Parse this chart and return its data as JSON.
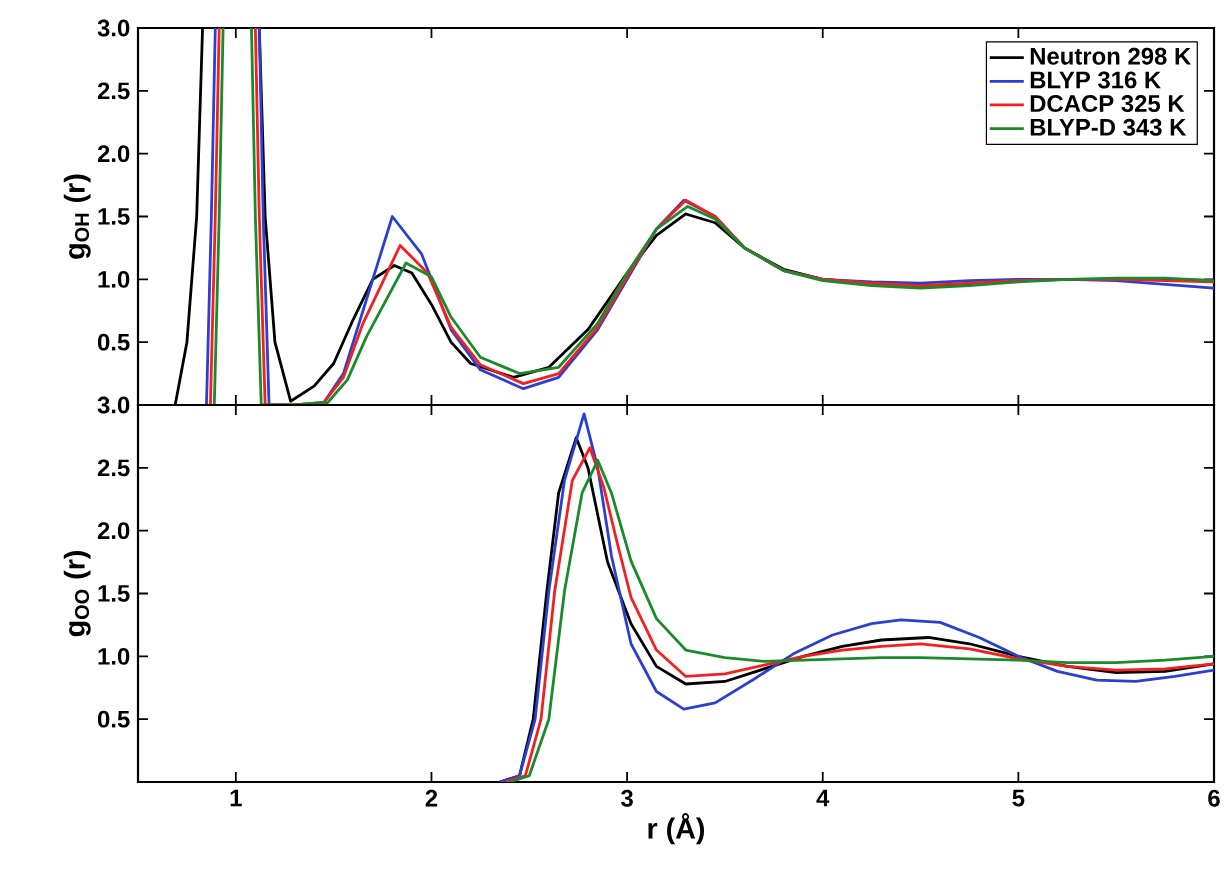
{
  "chart_data": [
    {
      "type": "line",
      "ylabel": "g$_{OH}$ (r)",
      "xlim": [
        0.5,
        6
      ],
      "xticks": [
        1,
        2,
        3,
        4,
        5,
        6
      ],
      "ylim": [
        0,
        3
      ],
      "yticks": [
        {
          "value": 0.5,
          "label": "0.5"
        },
        {
          "value": 1,
          "label": "1.0"
        },
        {
          "value": 1.5,
          "label": "1.5"
        },
        {
          "value": 2,
          "label": "2.0"
        },
        {
          "value": 2.5,
          "label": "2.5"
        },
        {
          "value": 3,
          "label": "3.0"
        }
      ],
      "tick_labels": "y",
      "legend": "top right",
      "marker": "none",
      "line_style": "solid",
      "grid": false,
      "series": [
        {
          "name": "Neutron 298 K",
          "color": "#000000",
          "x": [
            0.69,
            0.75,
            0.8,
            0.83,
            0.95,
            1.12,
            1.15,
            1.2,
            1.28,
            1.4,
            1.5,
            1.6,
            1.7,
            1.81,
            1.9,
            2.0,
            2.1,
            2.2,
            2.42,
            2.6,
            2.8,
            3.0,
            3.15,
            3.3,
            3.45,
            3.6,
            3.8,
            4.0,
            4.25,
            4.5,
            4.75,
            5.0,
            5.25,
            5.5,
            5.75,
            6.0
          ],
          "values": [
            0,
            0.5,
            1.5,
            3.0,
            null,
            3.0,
            1.5,
            0.5,
            0.03,
            0.15,
            0.33,
            0.68,
            1.0,
            1.11,
            1.05,
            0.8,
            0.5,
            0.33,
            0.22,
            0.3,
            0.6,
            1.05,
            1.35,
            1.52,
            1.45,
            1.25,
            1.08,
            1.0,
            0.97,
            0.95,
            0.96,
            0.99,
            1.0,
            1.0,
            1.0,
            0.99
          ]
        },
        {
          "name": "BLYP 316 K",
          "color": "#2b3fd0",
          "x": [
            0.85,
            0.875,
            0.895,
            1.0,
            1.12,
            1.14,
            1.17,
            1.3,
            1.45,
            1.55,
            1.65,
            1.8,
            1.95,
            2.1,
            2.25,
            2.47,
            2.65,
            2.85,
            3.0,
            3.15,
            3.29,
            3.45,
            3.6,
            3.8,
            4.0,
            4.25,
            4.5,
            4.75,
            5.0,
            5.25,
            5.5,
            5.75,
            6.0
          ],
          "values": [
            0,
            1.5,
            3.0,
            null,
            3.0,
            1.5,
            0,
            0,
            0.02,
            0.25,
            0.75,
            1.5,
            1.2,
            0.6,
            0.28,
            0.13,
            0.22,
            0.6,
            1.0,
            1.4,
            1.63,
            1.5,
            1.25,
            1.07,
            1.0,
            0.98,
            0.97,
            0.99,
            1.0,
            1.0,
            0.99,
            0.96,
            0.93
          ]
        },
        {
          "name": "DCACP 325 K",
          "color": "#f42020",
          "x": [
            0.87,
            0.895,
            0.915,
            1.0,
            1.1,
            1.12,
            1.15,
            1.3,
            1.45,
            1.55,
            1.65,
            1.84,
            1.98,
            2.1,
            2.25,
            2.47,
            2.65,
            2.85,
            3.0,
            3.15,
            3.3,
            3.45,
            3.6,
            3.8,
            4.0,
            4.25,
            4.5,
            4.75,
            5.0,
            5.25,
            5.5,
            5.75,
            6.0
          ],
          "values": [
            0,
            1.5,
            3.0,
            null,
            3.0,
            1.5,
            0,
            0,
            0.02,
            0.22,
            0.65,
            1.27,
            1.05,
            0.62,
            0.32,
            0.17,
            0.25,
            0.62,
            1.02,
            1.4,
            1.63,
            1.5,
            1.25,
            1.07,
            1.0,
            0.97,
            0.95,
            0.97,
            0.99,
            1.0,
            1.0,
            0.99,
            0.98
          ]
        },
        {
          "name": "BLYP-D 343 K",
          "color": "#1a8a2a",
          "x": [
            0.89,
            0.915,
            0.935,
            1.0,
            1.08,
            1.1,
            1.13,
            1.3,
            1.47,
            1.57,
            1.67,
            1.87,
            2.0,
            2.1,
            2.25,
            2.45,
            2.65,
            2.85,
            3.0,
            3.15,
            3.31,
            3.45,
            3.6,
            3.8,
            4.0,
            4.25,
            4.5,
            4.75,
            5.0,
            5.25,
            5.5,
            5.75,
            6.0
          ],
          "values": [
            0,
            1.5,
            3.0,
            null,
            3.0,
            1.5,
            0,
            0,
            0.02,
            0.2,
            0.55,
            1.13,
            1.02,
            0.7,
            0.38,
            0.25,
            0.3,
            0.65,
            1.05,
            1.4,
            1.58,
            1.48,
            1.25,
            1.07,
            0.99,
            0.95,
            0.93,
            0.95,
            0.98,
            1.0,
            1.01,
            1.01,
            0.99
          ]
        }
      ]
    },
    {
      "type": "line",
      "xlabel": "r (Å)",
      "ylabel": "g$_{OO}$ (r)",
      "xlim": [
        0.5,
        6
      ],
      "xticks": [
        1,
        2,
        3,
        4,
        5,
        6
      ],
      "ylim": [
        0,
        3
      ],
      "yticks": [
        {
          "value": 0.5,
          "label": "0.5"
        },
        {
          "value": 1,
          "label": "1.0"
        },
        {
          "value": 1.5,
          "label": "1.5"
        },
        {
          "value": 2,
          "label": "2.0"
        },
        {
          "value": 2.5,
          "label": "2.5"
        },
        {
          "value": 3,
          "label": "3.0"
        }
      ],
      "marker": "none",
      "line_style": "solid",
      "grid": false,
      "series": [
        {
          "color": "#000000",
          "x": [
            2.35,
            2.45,
            2.52,
            2.59,
            2.65,
            2.74,
            2.8,
            2.9,
            3.02,
            3.15,
            3.3,
            3.5,
            3.7,
            3.9,
            4.1,
            4.3,
            4.54,
            4.75,
            5.0,
            5.25,
            5.5,
            5.75,
            6.0
          ],
          "values": [
            0,
            0.05,
            0.5,
            1.52,
            2.3,
            2.74,
            2.5,
            1.75,
            1.26,
            0.92,
            0.78,
            0.8,
            0.9,
            1.0,
            1.08,
            1.13,
            1.15,
            1.1,
            1.0,
            0.92,
            0.87,
            0.88,
            0.94
          ]
        },
        {
          "color": "#2b3fd0",
          "x": [
            2.35,
            2.45,
            2.53,
            2.6,
            2.68,
            2.78,
            2.85,
            2.92,
            3.02,
            3.15,
            3.29,
            3.45,
            3.65,
            3.85,
            4.05,
            4.25,
            4.4,
            4.6,
            4.8,
            5.0,
            5.2,
            5.4,
            5.6,
            5.8,
            6.0
          ],
          "values": [
            0,
            0.05,
            0.5,
            1.52,
            2.4,
            2.93,
            2.5,
            1.8,
            1.1,
            0.72,
            0.58,
            0.63,
            0.82,
            1.02,
            1.17,
            1.26,
            1.29,
            1.27,
            1.15,
            1.0,
            0.88,
            0.81,
            0.8,
            0.84,
            0.89
          ]
        },
        {
          "color": "#f42020",
          "x": [
            2.38,
            2.48,
            2.56,
            2.63,
            2.72,
            2.81,
            2.88,
            2.95,
            3.02,
            3.15,
            3.3,
            3.5,
            3.7,
            3.9,
            4.1,
            4.3,
            4.5,
            4.75,
            5.0,
            5.25,
            5.5,
            5.75,
            6.0
          ],
          "values": [
            0,
            0.05,
            0.5,
            1.52,
            2.4,
            2.66,
            2.35,
            1.9,
            1.47,
            1.05,
            0.84,
            0.86,
            0.93,
            1.0,
            1.05,
            1.08,
            1.1,
            1.06,
            0.98,
            0.92,
            0.89,
            0.9,
            0.94
          ]
        },
        {
          "color": "#1a8a2a",
          "x": [
            2.4,
            2.5,
            2.6,
            2.68,
            2.77,
            2.85,
            2.92,
            3.02,
            3.15,
            3.3,
            3.5,
            3.7,
            3.9,
            4.1,
            4.3,
            4.5,
            4.75,
            5.0,
            5.25,
            5.5,
            5.75,
            6.0
          ],
          "values": [
            0,
            0.05,
            0.5,
            1.52,
            2.3,
            2.56,
            2.3,
            1.76,
            1.3,
            1.05,
            0.99,
            0.96,
            0.97,
            0.98,
            0.99,
            0.99,
            0.98,
            0.97,
            0.95,
            0.95,
            0.97,
            1.0
          ]
        }
      ]
    }
  ]
}
